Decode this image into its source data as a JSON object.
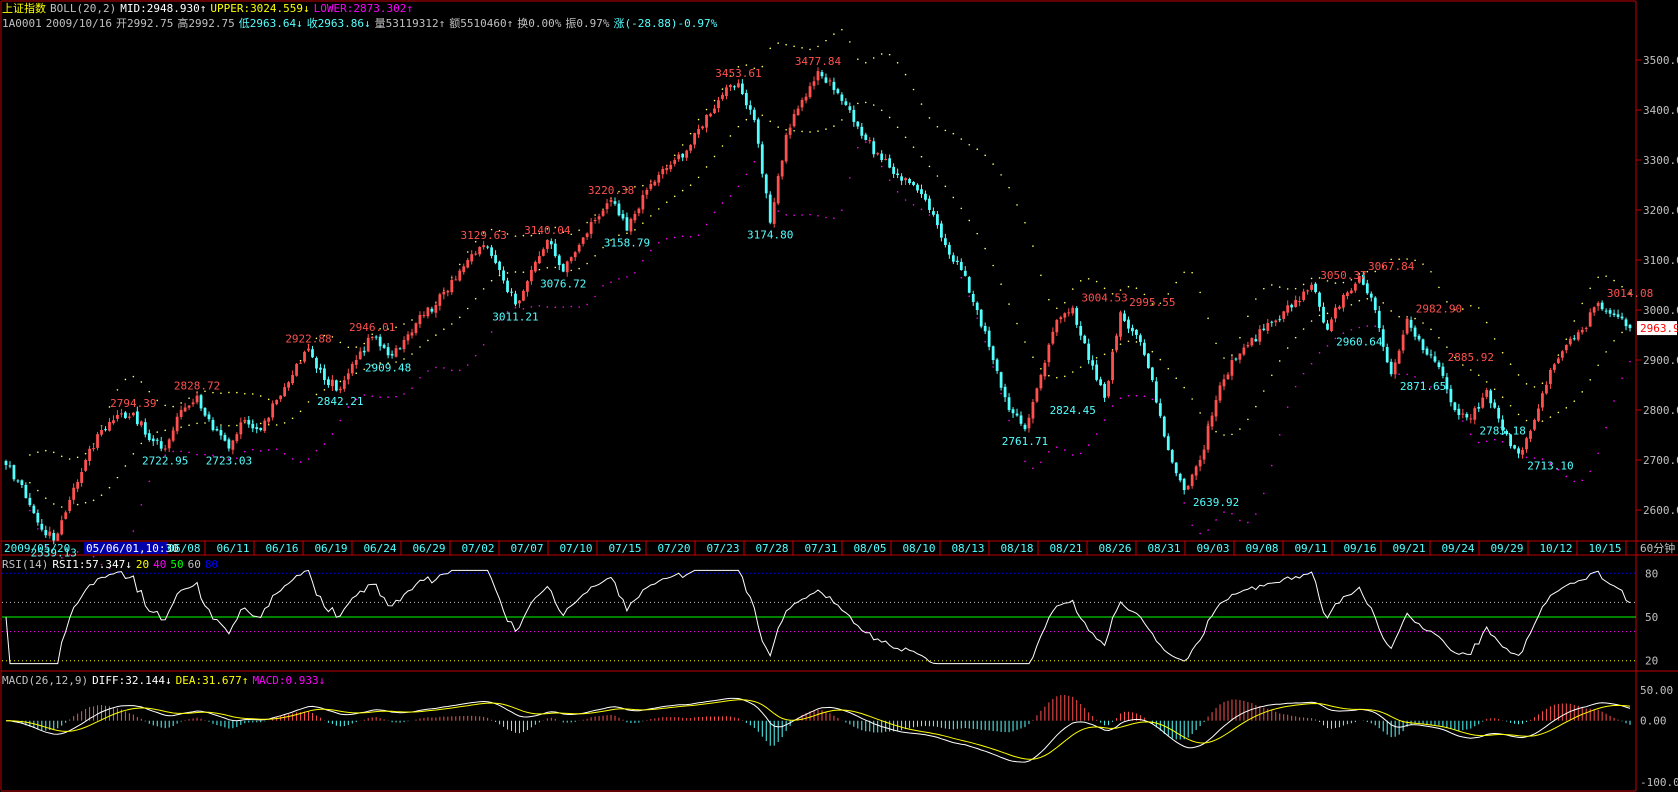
{
  "header": {
    "index_name": "上证指数",
    "boll_label": "BOLL(20,2)",
    "mid": "MID:2948.930↑",
    "upper": "UPPER:3024.559↓",
    "lower": "LOWER:2873.302↑",
    "code": "1A0001",
    "date": "2009/10/16",
    "open": "开2992.75",
    "high": "高2992.75",
    "low": "低2963.64↓",
    "close": "收2963.86↓",
    "volume": "量53119312↑",
    "amount": "额5510460↑",
    "turnover": "换0.00%",
    "amplitude": "振0.97%",
    "change": "涨(-28.88)-0.97%"
  },
  "rsi_header": {
    "label": "RSI(14)",
    "value": "RSI1:57.347↓",
    "levels": [
      "20",
      "40",
      "50",
      "60",
      "80"
    ]
  },
  "macd_header": {
    "label": "MACD(26,12,9)",
    "diff": "DIFF:32.144↓",
    "dea": "DEA:31.677↑",
    "macd": "MACD:0.933↓"
  },
  "date_axis": {
    "first": "2009/05/20",
    "cursor": "05/06/01,10:30",
    "ticks": [
      "06/08",
      "06/11",
      "06/16",
      "06/19",
      "06/24",
      "06/29",
      "07/02",
      "07/07",
      "07/10",
      "07/15",
      "07/20",
      "07/23",
      "07/28",
      "07/31",
      "08/05",
      "08/10",
      "08/13",
      "08/18",
      "08/21",
      "08/26",
      "08/31",
      "09/03",
      "09/08",
      "09/11",
      "09/16",
      "09/21",
      "09/24",
      "09/29",
      "10/12",
      "10/15"
    ],
    "period": "60分钟"
  },
  "price_axis": {
    "ticks": [
      "3500.00",
      "3400.00",
      "3300.00",
      "3200.00",
      "3100.00",
      "3000.00",
      "2900.00",
      "2800.00",
      "2700.00",
      "2600.00"
    ],
    "current": "2963.9"
  },
  "rsi_axis": {
    "ticks": [
      "80",
      "50",
      "20"
    ]
  },
  "macd_axis": {
    "ticks": [
      "50.00",
      "0.00",
      "-100.00"
    ]
  },
  "colors": {
    "up": "#ff5050",
    "down": "#54ffff",
    "mid": "#ffff66",
    "upper": "#ffff66",
    "lower": "#ff00ff",
    "frame": "#c00000",
    "green": "#00ff00",
    "yellow": "#ffff00",
    "magenta": "#ff00ff",
    "cyan": "#54ffff",
    "blue": "#0000ff"
  },
  "chart_data": [
    {
      "type": "candlestick",
      "title": "上证指数 60分钟",
      "ylim": [
        2540,
        3560
      ],
      "path": [
        [
          "05/20",
          2690
        ],
        [
          "",
          2650
        ],
        [
          "",
          2575
        ],
        [
          "",
          2539.13
        ],
        [
          "",
          2620
        ],
        [
          "",
          2700
        ],
        [
          "",
          2760
        ],
        [
          "",
          2790
        ],
        [
          "06/08",
          2794.39
        ],
        [
          "",
          2740
        ],
        [
          "",
          2722.95
        ],
        [
          "",
          2800
        ],
        [
          "06/11",
          2828.72
        ],
        [
          "",
          2760
        ],
        [
          "",
          2723.03
        ],
        [
          "",
          2780
        ],
        [
          "06/16",
          2760
        ],
        [
          "",
          2820
        ],
        [
          "",
          2870
        ],
        [
          "06/19",
          2922.88
        ],
        [
          "",
          2860
        ],
        [
          "",
          2842.21
        ],
        [
          "",
          2900
        ],
        [
          "06/24",
          2946.01
        ],
        [
          "",
          2909.48
        ],
        [
          "",
          2940
        ],
        [
          "06/29",
          2990
        ],
        [
          "",
          3010
        ],
        [
          "07/02",
          3060
        ],
        [
          "",
          3100
        ],
        [
          "",
          3129.63
        ],
        [
          "",
          3080
        ],
        [
          "07/07",
          3011.21
        ],
        [
          "",
          3080
        ],
        [
          "",
          3140.04
        ],
        [
          "07/10",
          3076.72
        ],
        [
          "",
          3130
        ],
        [
          "",
          3180
        ],
        [
          "07/15",
          3220.38
        ],
        [
          "",
          3158.79
        ],
        [
          "",
          3230
        ],
        [
          "07/20",
          3270
        ],
        [
          "",
          3300
        ],
        [
          "",
          3330
        ],
        [
          "07/23",
          3390
        ],
        [
          "",
          3430
        ],
        [
          "",
          3453.61
        ],
        [
          "07/28",
          3380
        ],
        [
          "",
          3174.8
        ],
        [
          "",
          3350
        ],
        [
          "07/31",
          3420
        ],
        [
          "",
          3477.84
        ],
        [
          "",
          3440
        ],
        [
          "",
          3400
        ],
        [
          "08/05",
          3340
        ],
        [
          "",
          3300
        ],
        [
          "",
          3270
        ],
        [
          "08/10",
          3250
        ],
        [
          "",
          3200
        ],
        [
          "",
          3130
        ],
        [
          "08/13",
          3080
        ],
        [
          "",
          3000
        ],
        [
          "",
          2900
        ],
        [
          "08/18",
          2800
        ],
        [
          "",
          2761.71
        ],
        [
          "",
          2870
        ],
        [
          "08/21",
          2980
        ],
        [
          "",
          3004.53
        ],
        [
          "",
          2900
        ],
        [
          "",
          2824.45
        ],
        [
          "08/26",
          2995.55
        ],
        [
          "",
          2950
        ],
        [
          "",
          2860
        ],
        [
          "08/31",
          2720
        ],
        [
          "",
          2639.92
        ],
        [
          "",
          2700
        ],
        [
          "09/03",
          2820
        ],
        [
          "",
          2900
        ],
        [
          "",
          2930
        ],
        [
          "09/08",
          2960
        ],
        [
          "",
          2980
        ],
        [
          "",
          3020
        ],
        [
          "09/11",
          3050.37
        ],
        [
          "",
          2960.64
        ],
        [
          "",
          3030
        ],
        [
          "09/16",
          3067.84
        ],
        [
          "",
          3000
        ],
        [
          "",
          2871.65
        ],
        [
          "09/21",
          2982.9
        ],
        [
          "",
          2920
        ],
        [
          "",
          2885.92
        ],
        [
          "09/24",
          2800
        ],
        [
          "",
          2783.18
        ],
        [
          "",
          2840
        ],
        [
          "09/29",
          2760
        ],
        [
          "",
          2713.1
        ],
        [
          "",
          2780
        ],
        [
          "10/12",
          2880
        ],
        [
          "",
          2930
        ],
        [
          "",
          2960
        ],
        [
          "",
          3014.08
        ],
        [
          "10/15",
          2990
        ],
        [
          "",
          2963.86
        ]
      ],
      "highs": [
        {
          "value": "2794.39",
          "i": 8
        },
        {
          "value": "2828.72",
          "i": 12
        },
        {
          "value": "2922.88",
          "i": 19
        },
        {
          "value": "2946.01",
          "i": 23
        },
        {
          "value": "3129.63",
          "i": 30
        },
        {
          "value": "3140.04",
          "i": 34
        },
        {
          "value": "3220.38",
          "i": 38
        },
        {
          "value": "3453.61",
          "i": 46
        },
        {
          "value": "3477.84",
          "i": 51
        },
        {
          "value": "3004.53",
          "i": 69
        },
        {
          "value": "2995.55",
          "i": 72
        },
        {
          "value": "3050.37",
          "i": 84
        },
        {
          "value": "3067.84",
          "i": 87
        },
        {
          "value": "2982.90",
          "i": 90
        },
        {
          "value": "2885.92",
          "i": 92
        },
        {
          "value": "3014.08",
          "i": 102
        }
      ],
      "lows": [
        {
          "value": "2539.13",
          "i": 3
        },
        {
          "value": "2722.95",
          "i": 10
        },
        {
          "value": "2723.03",
          "i": 14
        },
        {
          "value": "2842.21",
          "i": 21
        },
        {
          "value": "2909.48",
          "i": 24
        },
        {
          "value": "3011.21",
          "i": 32
        },
        {
          "value": "3076.72",
          "i": 35
        },
        {
          "value": "3158.79",
          "i": 39
        },
        {
          "value": "3174.80",
          "i": 48
        },
        {
          "value": "2761.71",
          "i": 64
        },
        {
          "value": "2824.45",
          "i": 67
        },
        {
          "value": "2639.92",
          "i": 76
        },
        {
          "value": "2960.64",
          "i": 85
        },
        {
          "value": "2871.65",
          "i": 89
        },
        {
          "value": "2783.18",
          "i": 94
        },
        {
          "value": "2713.10",
          "i": 97
        }
      ],
      "last": {
        "mid": 2948.93,
        "upper": 3024.559,
        "lower": 2873.302,
        "close": 2963.86
      }
    },
    {
      "type": "line",
      "title": "RSI(14)",
      "ylim": [
        15,
        85
      ],
      "levels": [
        20,
        40,
        50,
        60,
        80
      ],
      "last": 57.347
    },
    {
      "type": "bar",
      "title": "MACD(26,12,9)",
      "ylim": [
        -110,
        60
      ],
      "series": [
        {
          "name": "DIFF",
          "last": 32.144
        },
        {
          "name": "DEA",
          "last": 31.677
        },
        {
          "name": "MACD",
          "last": 0.933
        }
      ]
    }
  ]
}
